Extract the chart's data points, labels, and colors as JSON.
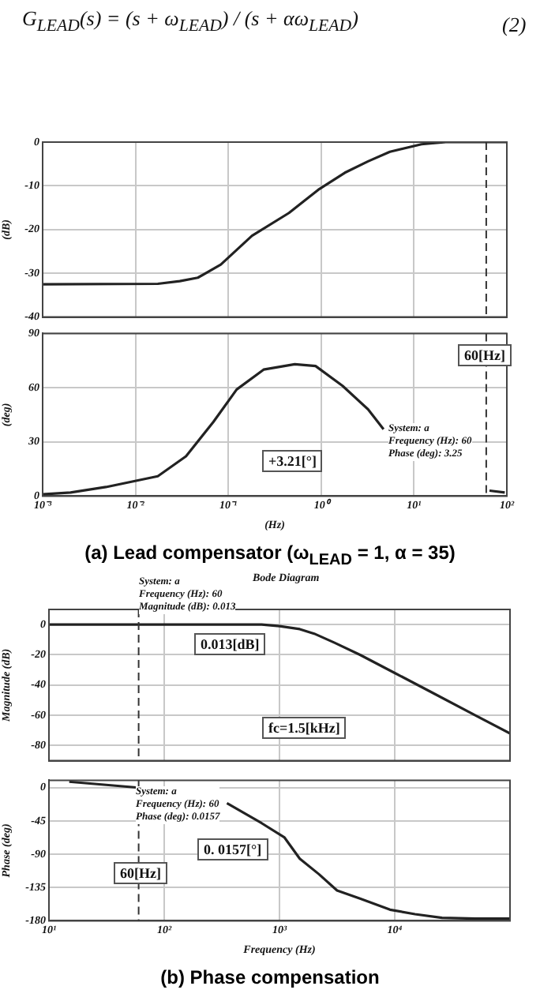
{
  "chart_data": [
    {
      "type": "line",
      "log": "x",
      "grid": true,
      "tick_labels": "y",
      "ylabel": "(dB)",
      "color": "#222222",
      "annotations": [
        "G$_{LEAD}$(s) = (s + ω$_{LEAD}$) / (s + αω$_{LEAD}$)",
        "(2)"
      ],
      "x": [
        0.001,
        0.0174,
        0.03,
        0.047,
        0.083,
        0.18,
        0.45,
        0.93,
        1.8,
        3.2,
        5.5,
        12,
        22,
        100
      ],
      "values": [
        -32.5,
        -32.4,
        -31.8,
        -31,
        -28,
        -21.4,
        -16.2,
        -10.9,
        -7,
        -4.4,
        -2.2,
        -0.5,
        0,
        0
      ],
      "xlim": [
        0.001,
        100
      ],
      "xticks": [
        0.001,
        0.01,
        0.1,
        1,
        10,
        100
      ],
      "ylim": [
        -40,
        0
      ],
      "yticks": [
        0,
        -10,
        -20,
        -30,
        -40
      ],
      "ref_lines": [
        {
          "axis": "x",
          "value": 60,
          "line_style": "dashed"
        }
      ]
    },
    {
      "type": "line",
      "log": "x",
      "grid": true,
      "title": "(a) Lead compensator (ω$_{LEAD}$ = 1, α = 35)",
      "xlabel": "(Hz)",
      "ylabel": "(deg)",
      "color": "#222222",
      "annotations": [
        "System: a\nFrequency (Hz): 60\nPhase (deg): 3.25",
        "+3.21[°]"
      ],
      "x": [
        0.001,
        0.002,
        0.0048,
        0.0174,
        0.035,
        0.069,
        0.123,
        0.24,
        0.52,
        0.87,
        1.7,
        3.2,
        4.7,
        9.1,
        20,
        65,
        95
      ],
      "values": [
        1,
        2,
        5,
        11,
        22,
        41,
        59,
        70,
        73,
        72,
        61,
        48,
        37,
        null,
        null,
        3,
        2
      ],
      "xlim": [
        0.001,
        100
      ],
      "xticks": [
        {
          "value": 0.001,
          "label": "10⁻³"
        },
        {
          "value": 0.01,
          "label": "10⁻²"
        },
        {
          "value": 0.1,
          "label": "10⁻¹"
        },
        {
          "value": 1,
          "label": "10⁰"
        },
        {
          "value": 10,
          "label": "10¹"
        },
        {
          "value": 100,
          "label": "10²"
        }
      ],
      "ylim": [
        0,
        90
      ],
      "yticks": [
        0,
        30,
        60,
        90
      ],
      "ref_lines": [
        {
          "axis": "x",
          "value": 60,
          "label": "60[Hz]",
          "line_style": "dashed"
        }
      ]
    },
    {
      "type": "line",
      "log": "x",
      "grid": true,
      "tick_labels": "y",
      "title": "Bode Diagram",
      "ylabel": "Magnitude (dB)",
      "color": "#222222",
      "annotations": [
        "System: a\nFrequency (Hz): 60\nMagnitude (dB): 0.013",
        "0.013[dB]",
        "fc=1.5[kHz]"
      ],
      "x": [
        10,
        100,
        300,
        700,
        1000,
        1500,
        2000,
        3000,
        5000,
        10000,
        20000,
        50000,
        100000
      ],
      "values": [
        0,
        0,
        0,
        0,
        -1,
        -3,
        -6,
        -12,
        -20,
        -32,
        -44,
        -60,
        -72
      ],
      "xlim": [
        10,
        100000
      ],
      "xticks": [
        10,
        100,
        1000,
        10000
      ],
      "ylim": [
        -90,
        10
      ],
      "yticks": [
        0,
        -20,
        -40,
        -60,
        -80
      ],
      "ref_lines": [
        {
          "axis": "x",
          "value": 60,
          "line_style": "dashed"
        }
      ]
    },
    {
      "type": "line",
      "log": "x",
      "grid": true,
      "title": "(b) Phase compensation",
      "xlabel": "Frequency (Hz)",
      "ylabel": "Phase (deg)",
      "color": "#222222",
      "annotations": [
        "System: a\nFrequency (Hz): 60\nPhase (deg): 0.0157",
        "0. 0157[°]"
      ],
      "x": [
        15,
        60,
        150,
        350,
        700,
        1100,
        1500,
        2200,
        3160,
        5000,
        9100,
        15000,
        25700,
        50000,
        100000
      ],
      "values": [
        8,
        0.0157,
        null,
        -21,
        -48,
        -67,
        -96,
        -117,
        -139,
        -150,
        -165,
        -171,
        -176,
        -177,
        -177
      ],
      "xlim": [
        10,
        100000
      ],
      "xticks": [
        {
          "value": 10,
          "label": "10¹"
        },
        {
          "value": 100,
          "label": "10²"
        },
        {
          "value": 1000,
          "label": "10³"
        },
        {
          "value": 10000,
          "label": "10⁴"
        }
      ],
      "ylim": [
        -180,
        10
      ],
      "yticks": [
        0,
        -45,
        -90,
        -135,
        -180
      ],
      "ref_lines": [
        {
          "axis": "x",
          "value": 60,
          "label": "60[Hz]",
          "line_style": "dashed"
        }
      ]
    }
  ]
}
